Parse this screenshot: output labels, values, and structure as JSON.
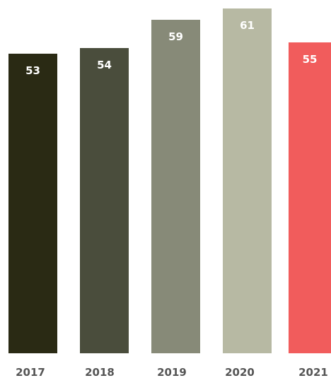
{
  "chart_data": {
    "type": "bar",
    "categories": [
      "2017",
      "2018",
      "2019",
      "2020",
      "2021"
    ],
    "values": [
      53,
      54,
      59,
      61,
      55
    ],
    "value_labels": [
      "53",
      "54",
      "59",
      "61",
      "55"
    ],
    "colors": [
      "#2a2a14",
      "#4a4d3c",
      "#878a78",
      "#b7b9a3",
      "#f15c5c"
    ],
    "ylim": [
      0,
      61
    ],
    "grid": false,
    "legend": "none"
  }
}
